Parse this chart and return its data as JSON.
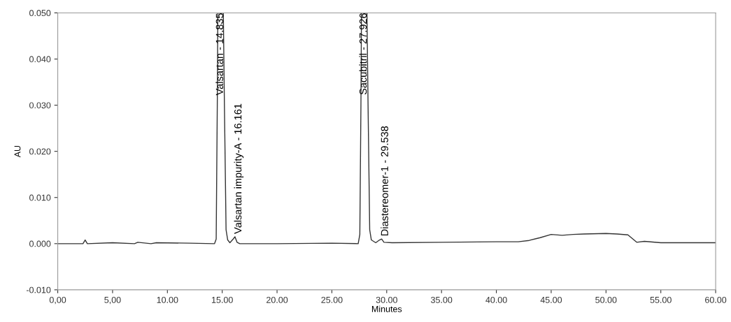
{
  "chart_data": {
    "type": "line",
    "xlabel": "Minutes",
    "ylabel": "AU",
    "xlim": [
      0,
      60
    ],
    "ylim": [
      -0.01,
      0.05
    ],
    "xticks": [
      {
        "value": 0,
        "label": "0,00"
      },
      {
        "value": 5,
        "label": "5,00"
      },
      {
        "value": 10,
        "label": "10.00"
      },
      {
        "value": 15,
        "label": "15.00"
      },
      {
        "value": 20,
        "label": "20.00"
      },
      {
        "value": 25,
        "label": "25.00"
      },
      {
        "value": 30,
        "label": "30.00"
      },
      {
        "value": 35,
        "label": "35.00"
      },
      {
        "value": 40,
        "label": "40.00"
      },
      {
        "value": 45,
        "label": "45.00"
      },
      {
        "value": 50,
        "label": "50.00"
      },
      {
        "value": 55,
        "label": "55.00"
      },
      {
        "value": 60,
        "label": "60.00"
      }
    ],
    "yticks": [
      {
        "value": -0.01,
        "label": "-0.010"
      },
      {
        "value": 0,
        "label": "0.000"
      },
      {
        "value": 0.01,
        "label": "0.010"
      },
      {
        "value": 0.02,
        "label": "0.020"
      },
      {
        "value": 0.03,
        "label": "0.030"
      },
      {
        "value": 0.04,
        "label": "0.040"
      },
      {
        "value": 0.05,
        "label": "0.050"
      }
    ],
    "grid": false,
    "marker": "none",
    "line_style": "solid",
    "series": [
      {
        "color": "#333333",
        "x": [
          0,
          2.3,
          2.5,
          2.7,
          5,
          7,
          7.3,
          8.5,
          9,
          12,
          14.3,
          14.45,
          14.55,
          14.6,
          15.1,
          15.2,
          15.35,
          15.5,
          15.7,
          16.0,
          16.161,
          16.35,
          16.6,
          20,
          25,
          27.4,
          27.55,
          27.65,
          27.7,
          28.2,
          28.3,
          28.45,
          28.6,
          29.0,
          29.35,
          29.538,
          29.75,
          30.5,
          35,
          40,
          42,
          43,
          44,
          45,
          46,
          47,
          48,
          50,
          51,
          52,
          52.8,
          53.5,
          55,
          60
        ],
        "values": [
          0,
          0,
          0.0008,
          0,
          0.0002,
          0,
          0.0003,
          0,
          0.0002,
          0.0001,
          0,
          0.001,
          0.03,
          0.05,
          0.05,
          0.03,
          0.003,
          0.0008,
          0.0002,
          0.001,
          0.0015,
          0.0003,
          0,
          0,
          0.0001,
          0,
          0.002,
          0.03,
          0.05,
          0.05,
          0.03,
          0.003,
          0.0008,
          0.0002,
          0.0008,
          0.001,
          0.0003,
          0.0002,
          0.0003,
          0.0004,
          0.0004,
          0.0007,
          0.0013,
          0.002,
          0.0018,
          0.002,
          0.0021,
          0.0022,
          0.0021,
          0.0019,
          0.0003,
          0.0005,
          0.0002,
          0.0002
        ]
      }
    ],
    "annotations": [
      {
        "text": "Valsartan - 14.835",
        "x": 14.835,
        "y": 0.05
      },
      {
        "text": "Valsartan impurity-A - 16.161",
        "x": 16.161,
        "y": 0.0015
      },
      {
        "text": "Sacubitril - 27.926",
        "x": 27.926,
        "y": 0.05
      },
      {
        "text": "Diastereomer-1 - 29.538",
        "x": 29.538,
        "y": 0.001
      }
    ]
  }
}
